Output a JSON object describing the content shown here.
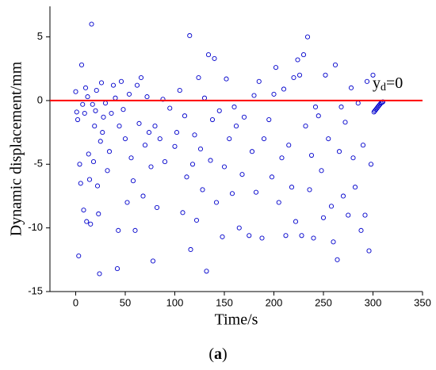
{
  "chart_data": {
    "type": "scatter",
    "xlabel": "Time/s",
    "ylabel": "Dynamic displacement/mm",
    "caption": [
      "(",
      "a",
      ")"
    ],
    "annotation": {
      "base": "y",
      "subscript": "d",
      "suffix": "=0",
      "color": "#ff0000"
    },
    "hline": 0,
    "hline_color": "#ff0000",
    "xlim": [
      -26,
      350
    ],
    "ylim": [
      -15,
      7.4
    ],
    "xticks": [
      0,
      50,
      100,
      150,
      200,
      250,
      300,
      350
    ],
    "yticks": [
      -15,
      -10,
      -5,
      0,
      5
    ],
    "series": [
      {
        "color": "#0000cc",
        "x": [
          0,
          1,
          2,
          3,
          4,
          5,
          6,
          7,
          8,
          9,
          10,
          11,
          12,
          13,
          14,
          15,
          16,
          17,
          18,
          19,
          20,
          21,
          22,
          23,
          24,
          25,
          26,
          27,
          28,
          30,
          32,
          34,
          36,
          38,
          40,
          42,
          43,
          44,
          46,
          48,
          50,
          52,
          54,
          56,
          58,
          60,
          62,
          64,
          66,
          68,
          70,
          72,
          74,
          76,
          78,
          80,
          82,
          85,
          88,
          90,
          95,
          100,
          102,
          105,
          108,
          110,
          112,
          115,
          116,
          118,
          120,
          122,
          124,
          126,
          128,
          130,
          132,
          134,
          136,
          138,
          140,
          142,
          145,
          148,
          150,
          152,
          155,
          158,
          160,
          162,
          165,
          168,
          170,
          175,
          178,
          180,
          182,
          185,
          188,
          190,
          195,
          198,
          200,
          202,
          205,
          208,
          210,
          212,
          215,
          218,
          220,
          222,
          224,
          226,
          228,
          230,
          232,
          234,
          236,
          238,
          240,
          242,
          245,
          248,
          250,
          252,
          255,
          258,
          260,
          262,
          264,
          266,
          268,
          270,
          272,
          275,
          278,
          280,
          282,
          285,
          288,
          290,
          292,
          294,
          296,
          298,
          300,
          301,
          302,
          303,
          304,
          305,
          306,
          307,
          308,
          309,
          310
        ],
        "values": [
          0.7,
          -0.9,
          -1.5,
          -12.2,
          -5,
          -6.5,
          2.8,
          -0.3,
          -8.6,
          -1,
          1,
          -9.5,
          0.3,
          -4.2,
          -6.2,
          -9.7,
          6,
          -0.3,
          -4.8,
          -2,
          -0.8,
          0.8,
          -6.7,
          -8.9,
          -13.6,
          -3.2,
          1.4,
          -2.5,
          -1.3,
          -0.2,
          -5.5,
          -4,
          -1,
          1.2,
          0.2,
          -13.2,
          -10.2,
          -2,
          1.5,
          -0.7,
          -3,
          -8,
          0.5,
          -4.5,
          -6.3,
          -10.2,
          1.2,
          -1.8,
          1.8,
          -7.5,
          -3.5,
          0.3,
          -2.5,
          -5.2,
          -12.6,
          -2,
          -8.4,
          -3,
          0.1,
          -4.8,
          -0.6,
          -3.6,
          -2.5,
          0.8,
          -8.8,
          -1.2,
          -6,
          5.1,
          -11.7,
          -5,
          -2.7,
          -9.4,
          1.8,
          -3.8,
          -7,
          0.2,
          -13.4,
          3.6,
          -4.7,
          -1.5,
          3.3,
          -8,
          -0.8,
          -10.7,
          -5.2,
          1.7,
          -3,
          -7.3,
          -0.5,
          -2,
          -10,
          -5.8,
          -1.3,
          -10.6,
          -4,
          0.4,
          -7.2,
          1.5,
          -10.8,
          -3,
          -1.5,
          -6,
          0.5,
          2.6,
          -8,
          -4.5,
          0.9,
          -10.6,
          -3.5,
          -6.8,
          1.8,
          -9.5,
          3.2,
          2,
          -10.6,
          3.6,
          -2,
          5,
          -7,
          -4.3,
          -10.8,
          -0.5,
          -1.2,
          -5.5,
          -9.2,
          2,
          -3,
          -8.3,
          -11.1,
          2.8,
          -12.5,
          -4,
          -0.5,
          -7.5,
          -1.7,
          -9,
          1,
          -4.5,
          -6.8,
          -0.2,
          -10.2,
          -3.5,
          -9,
          1.5,
          -11.8,
          -5,
          2,
          -0.9,
          -0.8,
          -0.7,
          -0.6,
          -0.5,
          -0.4,
          -0.3,
          -0.2,
          -0.15,
          -0.1
        ]
      }
    ]
  }
}
